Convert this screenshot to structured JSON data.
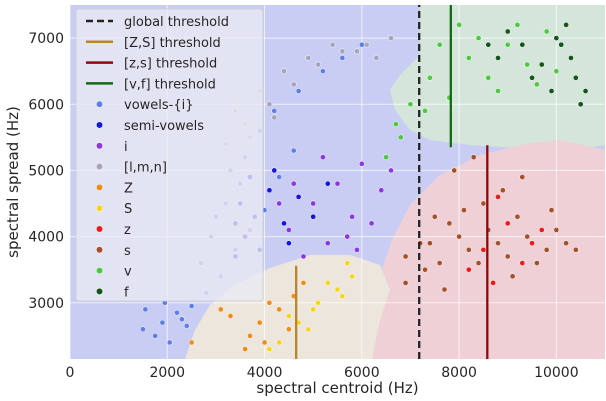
{
  "chart_data": {
    "type": "scatter",
    "xlabel": "spectral centroid (Hz)",
    "ylabel": "spectral spread (Hz)",
    "xlim": [
      0,
      11000
    ],
    "ylim": [
      2150,
      7500
    ],
    "xticks": [
      0,
      2000,
      4000,
      6000,
      8000,
      10000
    ],
    "yticks": [
      3000,
      4000,
      5000,
      6000,
      7000
    ],
    "xtick_labels": [
      "0",
      "2000",
      "4000",
      "6000",
      "8000",
      "10000"
    ],
    "ytick_labels": [
      "3000",
      "4000",
      "5000",
      "6000",
      "7000"
    ],
    "grid": true,
    "legend_position": "top-left",
    "regions": [
      {
        "label": "blue",
        "color": "#c9cdf3"
      },
      {
        "label": "beige",
        "color": "#ece6dc"
      },
      {
        "label": "red",
        "color": "#efd0d6"
      },
      {
        "label": "green",
        "color": "#d4e6da"
      }
    ],
    "thresholds": [
      {
        "name": "global threshold",
        "color": "#222222",
        "dashed": true,
        "x": 7180,
        "y_range": [
          2150,
          7500
        ]
      },
      {
        "name": "[Z,S] threshold",
        "color": "#b8862b",
        "dashed": false,
        "x": 4650,
        "y_range": [
          2150,
          3560
        ]
      },
      {
        "name": "[z,s] threshold",
        "color": "#8b0a0a",
        "dashed": false,
        "x": 8580,
        "y_range": [
          2150,
          5380
        ]
      },
      {
        "name": "[v,f] threshold",
        "color": "#126b12",
        "dashed": false,
        "x": 7830,
        "y_range": [
          5350,
          7500
        ]
      }
    ],
    "series": [
      {
        "name": "vowels-{i}",
        "color": "#5b7fe6",
        "points": [
          [
            1550,
            2900
          ],
          [
            1900,
            2700
          ],
          [
            2200,
            2850
          ],
          [
            2400,
            2650
          ],
          [
            1750,
            2500
          ],
          [
            2050,
            2400
          ],
          [
            1500,
            2600
          ],
          [
            2300,
            2750
          ],
          [
            1950,
            3000
          ],
          [
            2500,
            2950
          ],
          [
            2800,
            3150
          ],
          [
            3100,
            3400
          ],
          [
            3400,
            3800
          ],
          [
            3700,
            4100
          ],
          [
            4000,
            4400
          ],
          [
            4300,
            4900
          ],
          [
            4600,
            5300
          ],
          [
            3900,
            5600
          ],
          [
            4200,
            5900
          ],
          [
            4700,
            6200
          ],
          [
            5200,
            6500
          ],
          [
            5600,
            6700
          ],
          [
            6000,
            6900
          ],
          [
            3500,
            4800
          ],
          [
            3200,
            4500
          ],
          [
            2900,
            4000
          ],
          [
            2700,
            3600
          ],
          [
            3600,
            5200
          ],
          [
            3300,
            5000
          ],
          [
            3000,
            4300
          ]
        ]
      },
      {
        "name": "semi-vowels",
        "color": "#1414e0",
        "points": [
          [
            3500,
            4500
          ],
          [
            3800,
            4300
          ],
          [
            4100,
            4700
          ],
          [
            3600,
            4000
          ],
          [
            4400,
            4200
          ],
          [
            3900,
            3800
          ],
          [
            4700,
            4600
          ],
          [
            5000,
            4300
          ],
          [
            3400,
            3700
          ],
          [
            4200,
            5000
          ],
          [
            5300,
            4800
          ],
          [
            3700,
            4900
          ],
          [
            4500,
            3900
          ],
          [
            3400,
            4200
          ]
        ]
      },
      {
        "name": "i",
        "color": "#8c36e6",
        "points": [
          [
            4500,
            4100
          ],
          [
            5000,
            4500
          ],
          [
            5500,
            4800
          ],
          [
            6000,
            5100
          ],
          [
            5800,
            4300
          ],
          [
            5300,
            3900
          ],
          [
            6400,
            4700
          ],
          [
            4800,
            3700
          ],
          [
            6200,
            4200
          ],
          [
            5700,
            4000
          ],
          [
            4300,
            4500
          ],
          [
            6600,
            5000
          ],
          [
            5200,
            5200
          ],
          [
            4600,
            4800
          ],
          [
            5900,
            3800
          ]
        ]
      },
      {
        "name": "[l,m,n]",
        "color": "#a5a5ba",
        "points": [
          [
            3200,
            5400
          ],
          [
            3600,
            5700
          ],
          [
            4100,
            6000
          ],
          [
            4600,
            6300
          ],
          [
            5100,
            6600
          ],
          [
            5600,
            6800
          ],
          [
            6100,
            6900
          ],
          [
            6600,
            7000
          ],
          [
            3400,
            5900
          ],
          [
            3900,
            6200
          ],
          [
            4400,
            6500
          ],
          [
            4900,
            6700
          ],
          [
            5400,
            6900
          ],
          [
            5900,
            6800
          ],
          [
            6300,
            6700
          ],
          [
            3700,
            5500
          ],
          [
            4200,
            5800
          ]
        ]
      },
      {
        "name": "Z",
        "color": "#f28b17",
        "points": [
          [
            3900,
            2700
          ],
          [
            4300,
            2900
          ],
          [
            4600,
            3100
          ],
          [
            3700,
            2500
          ],
          [
            4100,
            3000
          ],
          [
            3300,
            2800
          ],
          [
            4500,
            2600
          ],
          [
            4000,
            2400
          ],
          [
            4800,
            3300
          ],
          [
            3100,
            2900
          ],
          [
            2500,
            2400
          ],
          [
            3600,
            2300
          ]
        ]
      },
      {
        "name": "S",
        "color": "#f4d51c",
        "points": [
          [
            4300,
            2400
          ],
          [
            4700,
            2700
          ],
          [
            5100,
            3000
          ],
          [
            5500,
            3200
          ],
          [
            5800,
            3400
          ],
          [
            4500,
            2800
          ],
          [
            4900,
            2600
          ],
          [
            5300,
            3300
          ],
          [
            5600,
            3100
          ],
          [
            4100,
            2300
          ],
          [
            5000,
            2900
          ],
          [
            5700,
            3600
          ]
        ]
      },
      {
        "name": "z",
        "color": "#ee1a1a",
        "points": [
          [
            8500,
            3800
          ],
          [
            9000,
            4200
          ],
          [
            9500,
            3900
          ],
          [
            8200,
            3500
          ],
          [
            8800,
            4600
          ],
          [
            9300,
            3600
          ],
          [
            8700,
            3300
          ],
          [
            9700,
            4100
          ]
        ]
      },
      {
        "name": "s",
        "color": "#a5502a",
        "points": [
          [
            7400,
            3900
          ],
          [
            7800,
            4200
          ],
          [
            8200,
            3800
          ],
          [
            8600,
            4100
          ],
          [
            9000,
            3700
          ],
          [
            9400,
            4000
          ],
          [
            9800,
            3800
          ],
          [
            10200,
            3900
          ],
          [
            7600,
            3600
          ],
          [
            8000,
            4000
          ],
          [
            8400,
            3600
          ],
          [
            8800,
            3900
          ],
          [
            9200,
            4300
          ],
          [
            9600,
            3600
          ],
          [
            10000,
            4100
          ],
          [
            7300,
            3500
          ],
          [
            7700,
            3200
          ],
          [
            8100,
            4400
          ],
          [
            8500,
            4500
          ],
          [
            8900,
            4700
          ],
          [
            9300,
            4900
          ],
          [
            7900,
            5000
          ],
          [
            8300,
            5200
          ],
          [
            6900,
            3700
          ],
          [
            7200,
            3900
          ],
          [
            10400,
            3800
          ],
          [
            7500,
            4300
          ],
          [
            9100,
            3400
          ],
          [
            9900,
            4400
          ],
          [
            6900,
            3300
          ]
        ]
      },
      {
        "name": "v",
        "color": "#4ec83f",
        "points": [
          [
            7400,
            6400
          ],
          [
            7800,
            6100
          ],
          [
            8200,
            6700
          ],
          [
            8600,
            6400
          ],
          [
            9000,
            6900
          ],
          [
            9400,
            6600
          ],
          [
            9800,
            7100
          ],
          [
            7600,
            6900
          ],
          [
            8400,
            7000
          ],
          [
            8800,
            6200
          ],
          [
            9200,
            7200
          ],
          [
            7300,
            5900
          ],
          [
            6800,
            5500
          ],
          [
            7000,
            6000
          ],
          [
            6500,
            5200
          ],
          [
            6700,
            5700
          ],
          [
            8000,
            7200
          ],
          [
            9600,
            6300
          ],
          [
            10000,
            6500
          ]
        ]
      },
      {
        "name": "f",
        "color": "#14561a",
        "points": [
          [
            8800,
            6700
          ],
          [
            9300,
            6900
          ],
          [
            9700,
            6600
          ],
          [
            10100,
            6900
          ],
          [
            10400,
            6400
          ],
          [
            10600,
            6200
          ],
          [
            9500,
            6400
          ],
          [
            10000,
            7000
          ],
          [
            10300,
            6700
          ],
          [
            9000,
            7100
          ],
          [
            10500,
            6000
          ],
          [
            9900,
            6200
          ],
          [
            8600,
            6900
          ],
          [
            10200,
            7200
          ]
        ]
      }
    ]
  }
}
